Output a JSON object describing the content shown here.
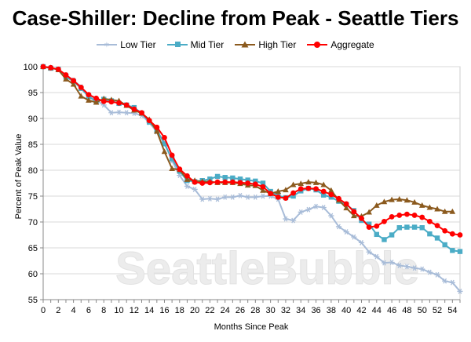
{
  "chart_data": {
    "type": "line",
    "title": "Case-Shiller: Decline from Peak - Seattle Tiers",
    "xlabel": "Months Since Peak",
    "ylabel": "Percent of Peak Value",
    "watermark": "SeattleBubble",
    "xlim": [
      0,
      55
    ],
    "ylim": [
      55,
      100
    ],
    "x_ticks": [
      "0",
      "2",
      "4",
      "6",
      "8",
      "10",
      "12",
      "14",
      "16",
      "18",
      "20",
      "22",
      "24",
      "26",
      "28",
      "30",
      "32",
      "34",
      "36",
      "38",
      "40",
      "42",
      "44",
      "46",
      "48",
      "50",
      "52",
      "54"
    ],
    "y_ticks": [
      "100",
      "95",
      "90",
      "85",
      "80",
      "75",
      "70",
      "65",
      "60",
      "55"
    ],
    "grid": true,
    "legend_position": "top",
    "series": [
      {
        "name": "Low Tier",
        "color": "#a8bcd8",
        "marker": "star",
        "values": [
          100,
          99.8,
          99.4,
          98.4,
          97.4,
          96.1,
          94.5,
          93.5,
          92.6,
          91.1,
          91.2,
          91.1,
          91.0,
          90.6,
          89.2,
          87.4,
          85.4,
          81.8,
          79.0,
          76.9,
          76.3,
          74.4,
          74.5,
          74.4,
          74.8,
          74.8,
          75.1,
          74.8,
          74.8,
          75.0,
          75.0,
          74.4,
          70.6,
          70.3,
          71.9,
          72.4,
          73.0,
          72.8,
          71.2,
          69.1,
          68.1,
          67.1,
          66.0,
          64.2,
          63.3,
          62.1,
          62.2,
          61.6,
          61.4,
          61.1,
          60.9,
          60.3,
          59.8,
          58.6,
          58.3,
          56.6
        ]
      },
      {
        "name": "Mid Tier",
        "color": "#4bacc6",
        "marker": "square",
        "values": [
          100,
          99.7,
          99.5,
          98.0,
          97.2,
          95.8,
          94.2,
          93.3,
          93.7,
          93.4,
          92.9,
          92.6,
          92.1,
          91.0,
          89.3,
          87.8,
          85.1,
          82.2,
          79.8,
          78.0,
          77.8,
          78.0,
          78.3,
          78.8,
          78.6,
          78.5,
          78.3,
          78.1,
          77.9,
          77.5,
          75.9,
          75.1,
          74.7,
          75.0,
          76.0,
          76.5,
          76.2,
          75.2,
          74.8,
          74.0,
          73.4,
          72.2,
          70.3,
          69.6,
          67.6,
          66.6,
          67.5,
          68.9,
          69.0,
          69.0,
          68.9,
          67.7,
          66.9,
          65.6,
          64.5,
          64.3
        ]
      },
      {
        "name": "High Tier",
        "color": "#8b5a1e",
        "marker": "triangle",
        "values": [
          100,
          99.8,
          99.4,
          97.6,
          96.6,
          94.3,
          93.5,
          93.1,
          93.8,
          93.6,
          93.4,
          92.5,
          91.6,
          91.0,
          89.8,
          87.5,
          83.6,
          80.3,
          80.1,
          78.2,
          78.0,
          77.8,
          77.8,
          77.6,
          77.6,
          77.6,
          77.4,
          77.1,
          77.0,
          76.1,
          75.5,
          75.9,
          76.2,
          77.2,
          77.4,
          77.7,
          77.6,
          77.2,
          76.1,
          74.2,
          72.7,
          71.2,
          71.1,
          71.9,
          73.2,
          73.9,
          74.3,
          74.4,
          74.2,
          73.8,
          73.2,
          72.8,
          72.5,
          72.0,
          72.0
        ]
      },
      {
        "name": "Aggregate",
        "color": "#ff0000",
        "marker": "circle",
        "values": [
          100,
          99.8,
          99.5,
          98.4,
          97.3,
          96.0,
          94.6,
          93.9,
          93.3,
          93.2,
          93.0,
          92.6,
          91.8,
          91.1,
          89.6,
          88.3,
          86.3,
          82.9,
          80.2,
          78.9,
          77.7,
          77.5,
          77.6,
          77.7,
          77.7,
          77.7,
          77.6,
          77.5,
          77.3,
          76.8,
          75.5,
          74.8,
          74.6,
          75.6,
          76.4,
          76.5,
          76.4,
          75.9,
          75.3,
          74.5,
          73.5,
          72.0,
          70.7,
          69.0,
          69.2,
          70.1,
          71.0,
          71.3,
          71.5,
          71.3,
          70.9,
          70.1,
          69.3,
          68.3,
          67.7,
          67.5
        ]
      }
    ]
  }
}
